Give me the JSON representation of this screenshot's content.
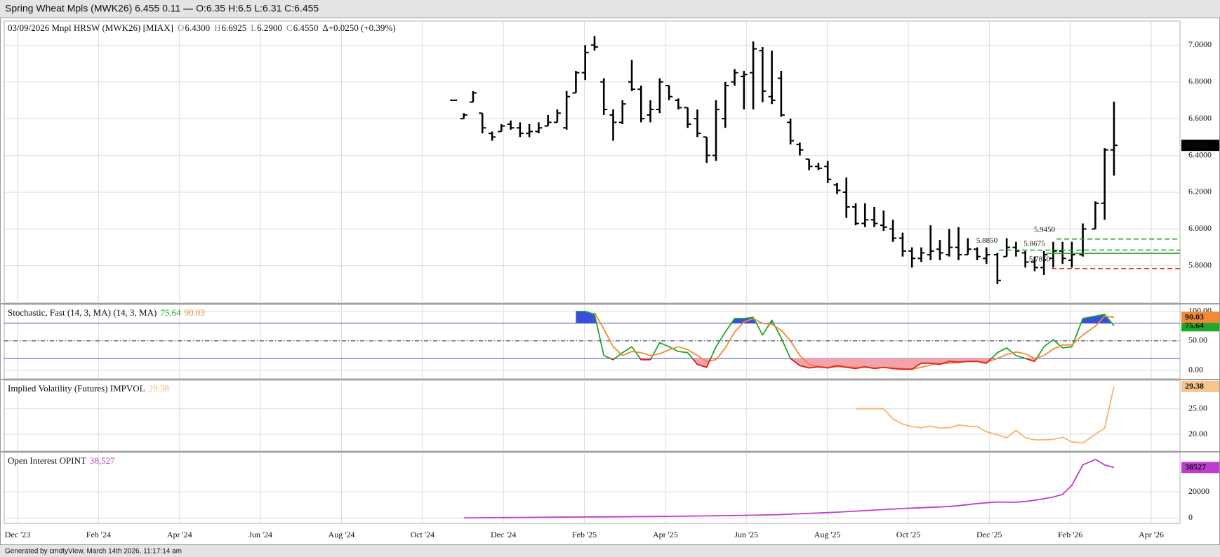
{
  "title_bar": "Spring Wheat Mpls (MWK26) 6.455 0.11 — O:6.35 H:6.5 L:6.31 C:6.455",
  "footer": "Generated by cmdtyView, March 14th 2026, 11:17:14 am",
  "chart_data": {
    "type": "ohlc",
    "header": [
      {
        "text": "03/09/2026 Mnpl HRSW (MWK26) [MIAX]",
        "color": "#111"
      },
      {
        "text": "O",
        "color": "#888"
      },
      {
        "text": "6.4300",
        "color": "#111"
      },
      {
        "text": "H",
        "color": "#888"
      },
      {
        "text": "6.6925",
        "color": "#111"
      },
      {
        "text": "L",
        "color": "#888"
      },
      {
        "text": "6.2900",
        "color": "#111"
      },
      {
        "text": "C",
        "color": "#888"
      },
      {
        "text": "6.4550",
        "color": "#111"
      },
      {
        "text": "Δ+0.0250 (+0.39%)",
        "color": "#111"
      }
    ],
    "color": "#000000",
    "grid": true,
    "xlim": [
      -0.33,
      28.71
    ],
    "xticks": [
      {
        "value": 0,
        "label": "Dec '23"
      },
      {
        "value": 2,
        "label": "Feb '24"
      },
      {
        "value": 4,
        "label": "Apr '24"
      },
      {
        "value": 6,
        "label": "Jun '24"
      },
      {
        "value": 8,
        "label": "Aug '24"
      },
      {
        "value": 10,
        "label": "Oct '24"
      },
      {
        "value": 12,
        "label": "Dec '24"
      },
      {
        "value": 14,
        "label": "Feb '25"
      },
      {
        "value": 16,
        "label": "Apr '25"
      },
      {
        "value": 18,
        "label": "Jun '25"
      },
      {
        "value": 20,
        "label": "Aug '25"
      },
      {
        "value": 22,
        "label": "Oct '25"
      },
      {
        "value": 24,
        "label": "Dec '25"
      },
      {
        "value": 26,
        "label": "Feb '26"
      },
      {
        "value": 28,
        "label": "Apr '26"
      }
    ],
    "x": [
      10.77,
      11.02,
      11.25,
      11.48,
      11.72,
      11.95,
      12.18,
      12.41,
      12.64,
      12.87,
      13.1,
      13.33,
      13.56,
      13.79,
      14.02,
      14.25,
      14.48,
      14.71,
      14.94,
      15.17,
      15.4,
      15.63,
      15.86,
      16.09,
      16.32,
      16.55,
      16.79,
      17.02,
      17.25,
      17.48,
      17.71,
      17.94,
      18.17,
      18.4,
      18.63,
      18.86,
      19.09,
      19.32,
      19.55,
      19.78,
      20.01,
      20.24,
      20.47,
      20.7,
      20.93,
      21.16,
      21.39,
      21.62,
      21.86,
      22.09,
      22.32,
      22.55,
      22.78,
      23.01,
      23.24,
      23.47,
      23.7,
      23.93,
      24.2,
      24.43,
      24.66,
      24.89,
      25.12,
      25.35,
      25.58,
      25.81,
      26.04,
      26.31,
      26.62,
      26.85,
      27.08
    ],
    "open": [
      6.7,
      6.6,
      6.69,
      6.63,
      6.52,
      6.53,
      6.57,
      6.55,
      6.52,
      6.53,
      6.56,
      6.58,
      6.55,
      6.74,
      6.85,
      7.0,
      6.8,
      6.62,
      6.58,
      6.8,
      6.76,
      6.62,
      6.65,
      6.78,
      6.7,
      6.66,
      6.6,
      6.5,
      6.4,
      6.6,
      6.8,
      6.83,
      6.85,
      6.97,
      6.72,
      6.82,
      6.58,
      6.46,
      6.38,
      6.34,
      6.34,
      6.24,
      6.2,
      6.12,
      6.03,
      6.05,
      6.02,
      6.0,
      5.95,
      5.88,
      5.84,
      5.86,
      5.89,
      5.86,
      5.9,
      5.86,
      5.89,
      5.84,
      5.86,
      5.85,
      5.9,
      5.87,
      5.82,
      5.79,
      5.84,
      5.88,
      5.83,
      5.86,
      6.0,
      6.14,
      6.43
    ],
    "high": [
      6.7,
      6.63,
      6.75,
      6.63,
      6.53,
      6.57,
      6.59,
      6.58,
      6.57,
      6.58,
      6.62,
      6.65,
      6.75,
      6.86,
      7.0,
      7.05,
      6.82,
      6.65,
      6.7,
      6.92,
      6.78,
      6.7,
      6.82,
      6.78,
      6.71,
      6.66,
      6.65,
      6.5,
      6.7,
      6.8,
      6.87,
      6.86,
      7.02,
      6.99,
      6.97,
      6.86,
      6.6,
      6.47,
      6.38,
      6.36,
      6.37,
      6.25,
      6.28,
      6.14,
      6.14,
      6.12,
      6.1,
      6.05,
      5.98,
      5.9,
      5.9,
      6.02,
      5.94,
      6.0,
      6.01,
      5.95,
      5.9,
      5.9,
      5.87,
      5.95,
      5.93,
      5.88,
      5.85,
      5.88,
      5.93,
      5.93,
      5.93,
      6.03,
      6.15,
      6.44,
      6.6925
    ],
    "low": [
      6.7,
      6.6,
      6.69,
      6.52,
      6.48,
      6.53,
      6.54,
      6.5,
      6.5,
      6.52,
      6.56,
      6.58,
      6.54,
      6.74,
      6.81,
      6.97,
      6.62,
      6.48,
      6.57,
      6.75,
      6.58,
      6.58,
      6.63,
      6.7,
      6.65,
      6.55,
      6.5,
      6.36,
      6.37,
      6.55,
      6.78,
      6.65,
      6.65,
      6.69,
      6.68,
      6.61,
      6.46,
      6.4,
      6.32,
      6.32,
      6.25,
      6.19,
      6.06,
      6.02,
      6.01,
      6.01,
      5.99,
      5.93,
      5.85,
      5.79,
      5.82,
      5.83,
      5.83,
      5.85,
      5.83,
      5.86,
      5.83,
      5.81,
      5.7,
      5.85,
      5.85,
      5.79,
      5.77,
      5.75,
      5.79,
      5.81,
      5.79,
      5.85,
      6.0,
      6.05,
      6.29
    ],
    "close": [
      6.7,
      6.62,
      6.74,
      6.55,
      6.5,
      6.56,
      6.55,
      6.52,
      6.53,
      6.55,
      6.58,
      6.63,
      6.72,
      6.85,
      6.96,
      6.99,
      6.65,
      6.58,
      6.68,
      6.76,
      6.6,
      6.65,
      6.8,
      6.72,
      6.66,
      6.57,
      6.52,
      6.4,
      6.65,
      6.78,
      6.85,
      6.84,
      6.98,
      6.75,
      6.7,
      6.62,
      6.48,
      6.43,
      6.34,
      6.33,
      6.27,
      6.21,
      6.12,
      6.03,
      6.05,
      6.03,
      6.01,
      5.95,
      5.88,
      5.84,
      5.87,
      5.88,
      5.87,
      5.9,
      5.86,
      5.89,
      5.85,
      5.86,
      5.72,
      5.9,
      5.88,
      5.82,
      5.79,
      5.86,
      5.88,
      5.84,
      5.86,
      6.0,
      6.14,
      6.43,
      6.455
    ],
    "last_label": "6.4550",
    "ylim": [
      5.597,
      7.131
    ],
    "yticks": [
      {
        "value": 5.8,
        "label": "5.8000"
      },
      {
        "value": 6.0,
        "label": "6.0000"
      },
      {
        "value": 6.2,
        "label": "6.2000"
      },
      {
        "value": 6.4,
        "label": "6.4000"
      },
      {
        "value": 6.6,
        "label": "6.6000"
      },
      {
        "value": 6.8,
        "label": "6.8000"
      },
      {
        "value": 7.0,
        "label": "7.0000"
      }
    ],
    "levels": [
      {
        "value": 5.945,
        "label": "5.9450",
        "x": 25.66,
        "color": "#1e9e1e",
        "style": "dashed"
      },
      {
        "value": 5.885,
        "label": "5.8850",
        "x": 24.24,
        "color": "#1e9e1e",
        "style": "dashed"
      },
      {
        "value": 5.8675,
        "label": "5.8675",
        "x": 25.41,
        "color": "#1e9e1e",
        "style": "solid"
      },
      {
        "value": 5.785,
        "label": "5.7850",
        "x": 25.54,
        "color": "#e02020",
        "style": "dashed"
      }
    ],
    "panes": [
      {
        "type": "stochastic",
        "legend": "Stochastic, Fast (14, 3, MA)  (14, 3, MA)",
        "ylim": [
          -14.5,
          111.8
        ],
        "yticks": [
          {
            "value": 0,
            "label": "0.00"
          },
          {
            "value": 50,
            "label": "50.00"
          },
          {
            "value": 100,
            "label": "100.00"
          }
        ],
        "grid": true,
        "bands": [
          20,
          80
        ],
        "midline": 50,
        "band_color": "#5060d0",
        "over_fill": "#3a4fe0",
        "under_fill": "#f5a3aa",
        "under_line": "#e8202a",
        "series": [
          {
            "color": "#1fa82a",
            "label_color": "#ffffff",
            "values": [
              null,
              null,
              null,
              null,
              null,
              null,
              null,
              null,
              null,
              null,
              null,
              null,
              null,
              100,
              100,
              95,
              25,
              18,
              30,
              40,
              18,
              18,
              47,
              40,
              32,
              30,
              10,
              5,
              40,
              65,
              88,
              88,
              90,
              60,
              85,
              55,
              20,
              8,
              4,
              6,
              4,
              8,
              5,
              3,
              6,
              3,
              5,
              3,
              2,
              2,
              12,
              12,
              10,
              15,
              14,
              15,
              15,
              12,
              30,
              38,
              25,
              20,
              15,
              40,
              52,
              38,
              40,
              88,
              92,
              95,
              75.64
            ]
          },
          {
            "color": "#f28a35",
            "label_color": "#111111",
            "values": [
              null,
              null,
              null,
              null,
              null,
              null,
              null,
              null,
              null,
              null,
              null,
              null,
              null,
              null,
              null,
              98,
              70,
              40,
              25,
              32,
              30,
              25,
              28,
              35,
              40,
              35,
              25,
              15,
              18,
              38,
              65,
              82,
              88,
              80,
              78,
              68,
              50,
              25,
              10,
              6,
              5,
              6,
              6,
              5,
              5,
              4,
              5,
              4,
              3,
              2,
              5,
              9,
              12,
              12,
              13,
              15,
              15,
              14,
              20,
              27,
              31,
              28,
              20,
              25,
              36,
              43,
              43,
              60,
              75,
              92,
              90.03
            ]
          }
        ]
      },
      {
        "type": "line",
        "legend": "Implied Volatility (Futures)  IMPVOL",
        "ylim": [
          16.7,
          30.6
        ],
        "yticks": [
          {
            "value": 20,
            "label": "20.00"
          },
          {
            "value": 25,
            "label": "25.00"
          }
        ],
        "grid": true,
        "series": [
          {
            "color": "#f7b36a",
            "box_color": "#f7c48a",
            "label_color": "#111111",
            "values": [
              null,
              null,
              null,
              null,
              null,
              null,
              null,
              null,
              null,
              null,
              null,
              null,
              null,
              null,
              null,
              null,
              null,
              null,
              null,
              null,
              null,
              null,
              null,
              null,
              null,
              null,
              null,
              null,
              null,
              null,
              null,
              null,
              null,
              null,
              null,
              null,
              null,
              null,
              null,
              null,
              null,
              null,
              null,
              25,
              25,
              25,
              25,
              23,
              22,
              21.5,
              21.3,
              21.6,
              21.2,
              21.3,
              21.8,
              21.6,
              21.5,
              20.5,
              19.9,
              19.3,
              20.8,
              19.3,
              18.9,
              18.9,
              19.0,
              19.4,
              18.5,
              18.3,
              20.0,
              21.2,
              29.38
            ]
          }
        ]
      },
      {
        "type": "line",
        "legend": "Open Interest  OPINT",
        "ylim": [
          -4100,
          50000
        ],
        "yticks": [
          0,
          20000
        ],
        "grid": true,
        "series": [
          {
            "color": "#c03ccc",
            "label_color": "#ffffff",
            "value_label": "38,527",
            "values": [
              null,
              100,
              150,
              200,
              250,
              300,
              350,
              400,
              450,
              500,
              550,
              600,
              650,
              700,
              750,
              800,
              850,
              900,
              950,
              1000,
              1050,
              1100,
              1150,
              1200,
              1300,
              1400,
              1500,
              1600,
              1700,
              1800,
              1900,
              2000,
              2100,
              2200,
              2400,
              2600,
              2900,
              3200,
              3500,
              3800,
              4100,
              4400,
              4800,
              5200,
              5600,
              6000,
              6400,
              6800,
              7200,
              7500,
              7800,
              8100,
              8400,
              8800,
              9400,
              10200,
              11000,
              11600,
              12200,
              12000,
              12100,
              12600,
              13500,
              14700,
              16000,
              18000,
              25000,
              40500,
              44700,
              40500,
              38527
            ]
          }
        ]
      }
    ]
  }
}
